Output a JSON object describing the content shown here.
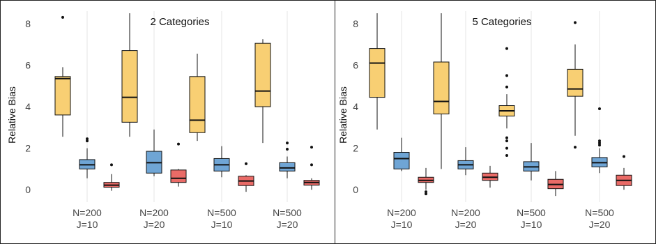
{
  "colors": {
    "yellow": "#F8CF73",
    "blue": "#6FA5D5",
    "red": "#EA6B67",
    "grid": "#E6E6E6",
    "line": "#111111"
  },
  "chart_data": [
    {
      "type": "box",
      "title": "2 Categories",
      "ylabel": "Relative Bias",
      "ylim": [
        -0.6,
        8.6
      ],
      "yticks": [
        0,
        2,
        4,
        6,
        8
      ],
      "grid": true,
      "categories": [
        {
          "line1": "N=200",
          "line2": "J=10"
        },
        {
          "line1": "N=200",
          "line2": "J=20"
        },
        {
          "line1": "N=500",
          "line2": "J=10"
        },
        {
          "line1": "N=500",
          "line2": "J=20"
        }
      ],
      "groups": [
        [
          {
            "color": "yellow",
            "whislo": 2.55,
            "q1": 3.6,
            "med": 5.35,
            "q3": 5.45,
            "whishi": 5.9,
            "outliers": [
              8.3
            ]
          },
          {
            "color": "blue",
            "whislo": 0.55,
            "q1": 1.0,
            "med": 1.2,
            "q3": 1.45,
            "whishi": 2.0,
            "outliers": [
              2.35,
              2.45
            ]
          },
          {
            "color": "red",
            "whislo": -0.05,
            "q1": 0.12,
            "med": 0.22,
            "q3": 0.35,
            "whishi": 0.75,
            "outliers": [
              1.2
            ]
          }
        ],
        [
          {
            "color": "yellow",
            "whislo": 2.55,
            "q1": 3.25,
            "med": 4.45,
            "q3": 6.7,
            "whishi": 8.5,
            "outliers": []
          },
          {
            "color": "blue",
            "whislo": 0.65,
            "q1": 0.8,
            "med": 1.3,
            "q3": 1.85,
            "whishi": 2.9,
            "outliers": []
          },
          {
            "color": "red",
            "whislo": 0.15,
            "q1": 0.35,
            "med": 0.55,
            "q3": 0.95,
            "whishi": 1.0,
            "outliers": [
              2.2
            ]
          }
        ],
        [
          {
            "color": "yellow",
            "whislo": 2.35,
            "q1": 2.75,
            "med": 3.35,
            "q3": 5.45,
            "whishi": 6.55,
            "outliers": []
          },
          {
            "color": "blue",
            "whislo": 0.6,
            "q1": 0.9,
            "med": 1.2,
            "q3": 1.5,
            "whishi": 2.1,
            "outliers": []
          },
          {
            "color": "red",
            "whislo": -0.1,
            "q1": 0.2,
            "med": 0.42,
            "q3": 0.65,
            "whishi": 0.7,
            "outliers": [
              1.25
            ]
          }
        ],
        [
          {
            "color": "yellow",
            "whislo": 2.25,
            "q1": 4.0,
            "med": 4.75,
            "q3": 7.05,
            "whishi": 7.25,
            "outliers": []
          },
          {
            "color": "blue",
            "whislo": 0.55,
            "q1": 0.9,
            "med": 1.05,
            "q3": 1.3,
            "whishi": 1.6,
            "outliers": [
              1.95,
              2.25
            ]
          },
          {
            "color": "red",
            "whislo": 0.0,
            "q1": 0.22,
            "med": 0.35,
            "q3": 0.45,
            "whishi": 0.55,
            "outliers": [
              1.2,
              2.05
            ]
          }
        ]
      ]
    },
    {
      "type": "box",
      "title": "5 Categories",
      "ylabel": "Relative Bias",
      "ylim": [
        -0.6,
        8.6
      ],
      "yticks": [
        0,
        2,
        4,
        6,
        8
      ],
      "grid": true,
      "categories": [
        {
          "line1": "N=200",
          "line2": "J=10"
        },
        {
          "line1": "N=200",
          "line2": "J=20"
        },
        {
          "line1": "N=500",
          "line2": "J=10"
        },
        {
          "line1": "N=500",
          "line2": "J=20"
        }
      ],
      "groups": [
        [
          {
            "color": "yellow",
            "whislo": 2.9,
            "q1": 4.45,
            "med": 6.1,
            "q3": 6.8,
            "whishi": 8.5,
            "outliers": []
          },
          {
            "color": "blue",
            "whislo": 0.9,
            "q1": 1.0,
            "med": 1.5,
            "q3": 1.8,
            "whishi": 2.5,
            "outliers": []
          },
          {
            "color": "red",
            "whislo": 0.0,
            "q1": 0.35,
            "med": 0.45,
            "q3": 0.6,
            "whishi": 1.05,
            "outliers": [
              -0.1,
              -0.2
            ]
          }
        ],
        [
          {
            "color": "yellow",
            "whislo": 1.0,
            "q1": 3.65,
            "med": 4.25,
            "q3": 6.15,
            "whishi": 8.5,
            "outliers": []
          },
          {
            "color": "blue",
            "whislo": 0.7,
            "q1": 1.0,
            "med": 1.2,
            "q3": 1.4,
            "whishi": 2.05,
            "outliers": []
          },
          {
            "color": "red",
            "whislo": 0.1,
            "q1": 0.45,
            "med": 0.6,
            "q3": 0.8,
            "whishi": 1.15,
            "outliers": []
          }
        ],
        [
          {
            "color": "yellow",
            "whislo": 2.95,
            "q1": 3.55,
            "med": 3.8,
            "q3": 4.05,
            "whishi": 4.6,
            "outliers": [
              1.65,
              2.0,
              2.35,
              2.5,
              4.95,
              5.5,
              6.8
            ]
          },
          {
            "color": "blue",
            "whislo": 0.45,
            "q1": 0.9,
            "med": 1.1,
            "q3": 1.35,
            "whishi": 2.25,
            "outliers": []
          },
          {
            "color": "red",
            "whislo": -0.3,
            "q1": 0.05,
            "med": 0.25,
            "q3": 0.5,
            "whishi": 0.9,
            "outliers": []
          }
        ],
        [
          {
            "color": "yellow",
            "whislo": 2.6,
            "q1": 4.5,
            "med": 4.85,
            "q3": 5.8,
            "whishi": 7.0,
            "outliers": [
              2.05,
              8.05
            ]
          },
          {
            "color": "blue",
            "whislo": 0.8,
            "q1": 1.1,
            "med": 1.3,
            "q3": 1.55,
            "whishi": 2.0,
            "outliers": [
              2.15,
              2.25,
              2.35,
              3.9
            ]
          },
          {
            "color": "red",
            "whislo": 0.0,
            "q1": 0.2,
            "med": 0.45,
            "q3": 0.7,
            "whishi": 1.05,
            "outliers": [
              1.6
            ]
          }
        ]
      ]
    }
  ]
}
